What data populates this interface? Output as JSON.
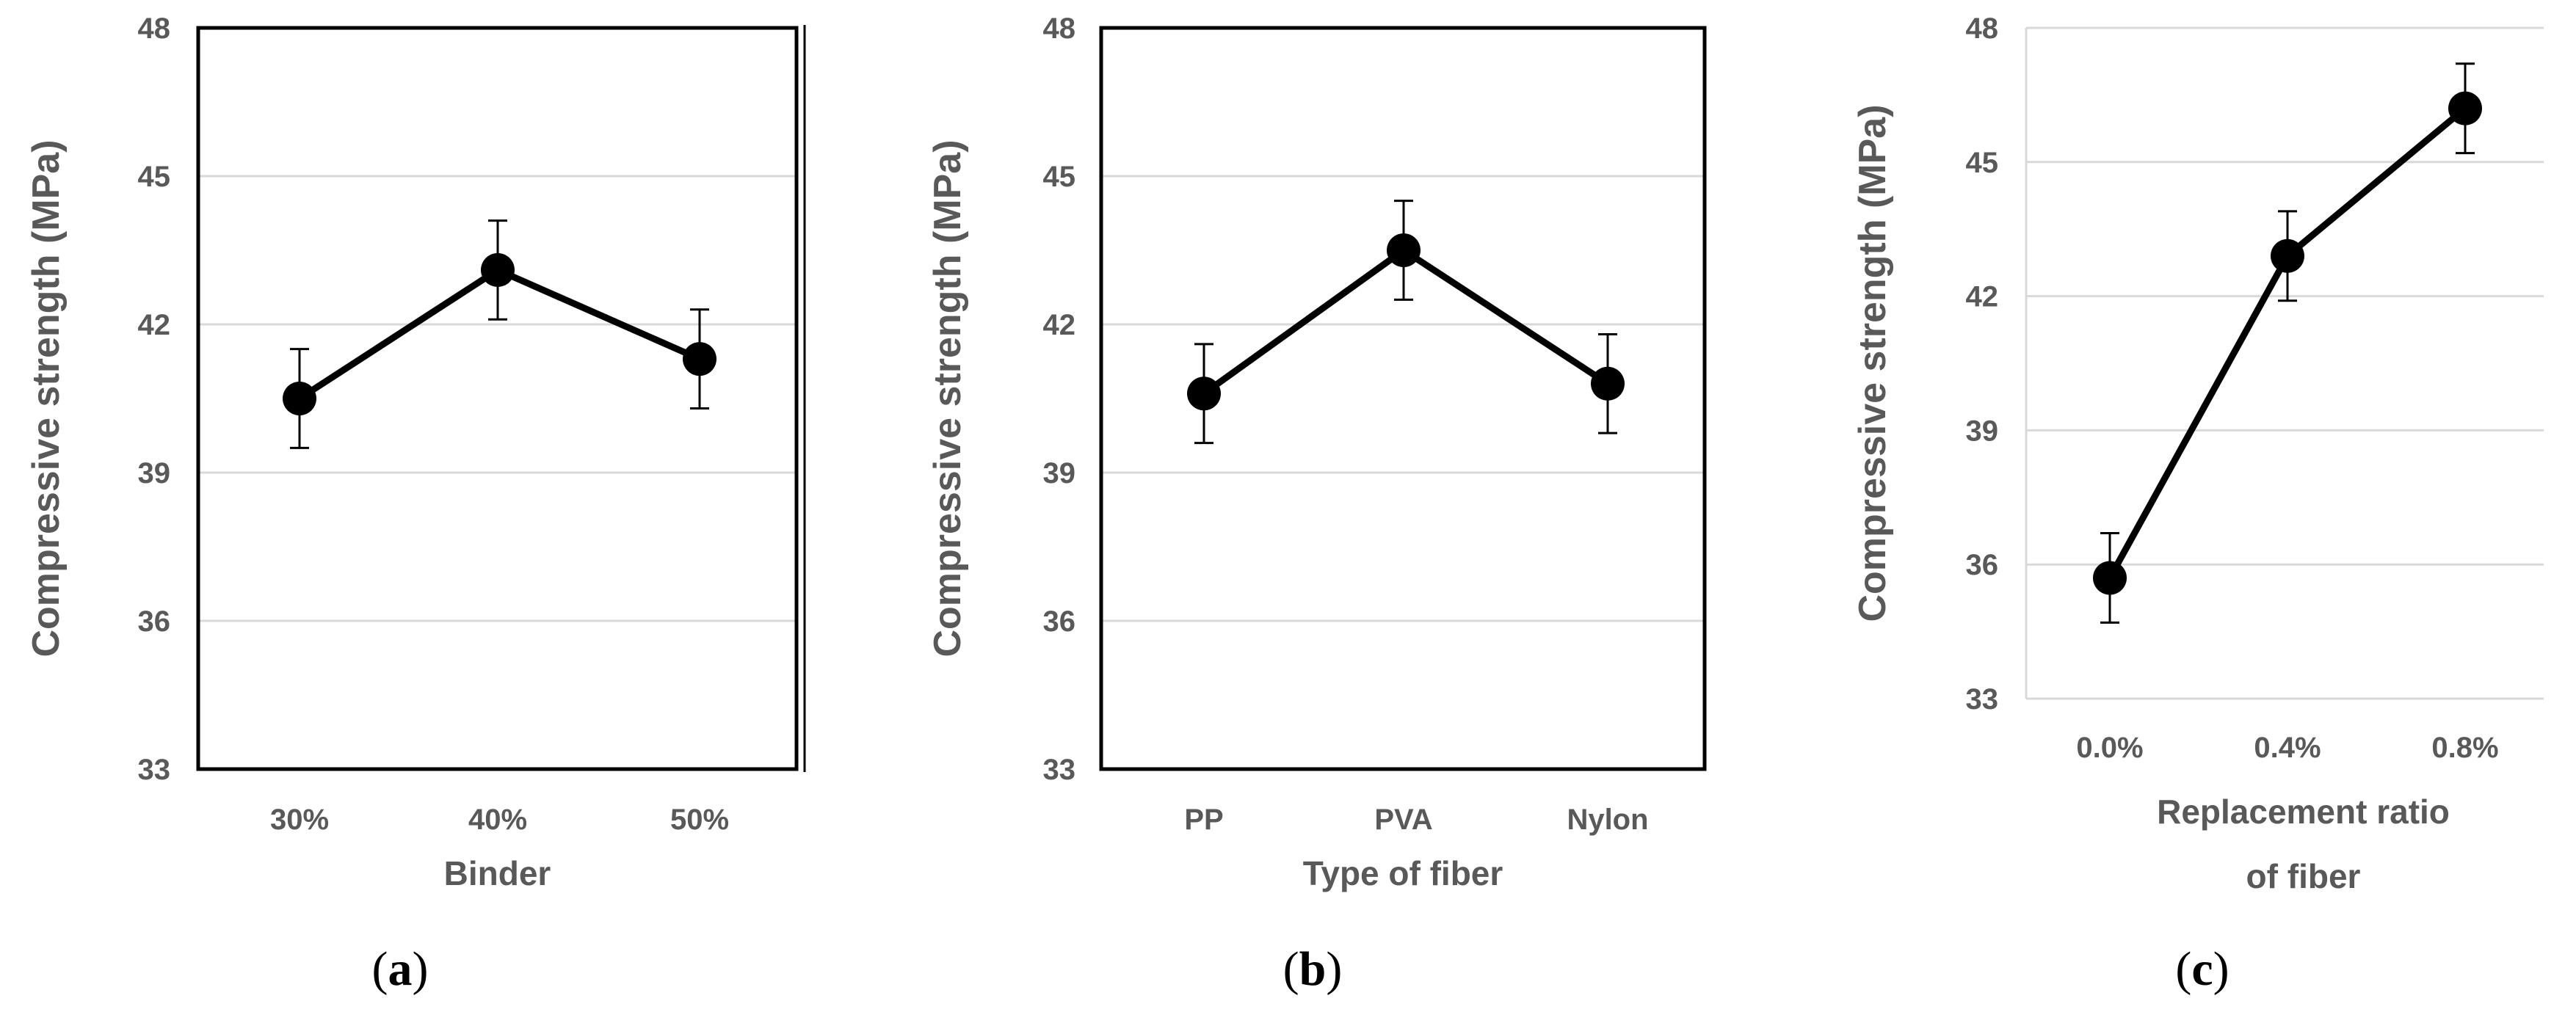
{
  "chart_data": [
    {
      "type": "line",
      "panel": "a",
      "panel_label_prefix": "(",
      "panel_label_letter": "a",
      "panel_label_suffix": ")",
      "categories": [
        "30%",
        "40%",
        "50%"
      ],
      "values": [
        40.5,
        43.1,
        41.3
      ],
      "errors": [
        1.0,
        1.0,
        1.0
      ],
      "ylabel": "Compressive strength (MPa)",
      "xlabel_lines": [
        "Binder"
      ],
      "ylim": [
        33,
        48
      ],
      "yticks": [
        33,
        36,
        39,
        42,
        45,
        48
      ],
      "grid": true,
      "frame": true
    },
    {
      "type": "line",
      "panel": "b",
      "panel_label_prefix": "(",
      "panel_label_letter": "b",
      "panel_label_suffix": ")",
      "categories": [
        "PP",
        "PVA",
        "Nylon"
      ],
      "values": [
        40.6,
        43.5,
        40.8
      ],
      "errors": [
        1.0,
        1.0,
        1.0
      ],
      "ylabel": "Compressive strength (MPa)",
      "xlabel_lines": [
        "Type of fiber"
      ],
      "ylim": [
        33,
        48
      ],
      "yticks": [
        33,
        36,
        39,
        42,
        45,
        48
      ],
      "grid": true,
      "frame": true
    },
    {
      "type": "line",
      "panel": "c",
      "panel_label_prefix": "(",
      "panel_label_letter": "c",
      "panel_label_suffix": ")",
      "categories": [
        "0.0%",
        "0.4%",
        "0.8%"
      ],
      "values": [
        35.7,
        42.9,
        46.2
      ],
      "errors": [
        1.0,
        1.0,
        1.0
      ],
      "ylabel": "Compressive strength (MPa)",
      "xlabel_lines": [
        "Replacement ratio",
        "of fiber"
      ],
      "ylim": [
        33,
        48
      ],
      "yticks": [
        33,
        36,
        39,
        42,
        45,
        48
      ],
      "grid": true,
      "frame": false
    }
  ],
  "colors": {
    "line": "#000000",
    "marker": "#000000",
    "grid": "#d9d9d9",
    "text": "#595959",
    "frame": "#000000"
  }
}
